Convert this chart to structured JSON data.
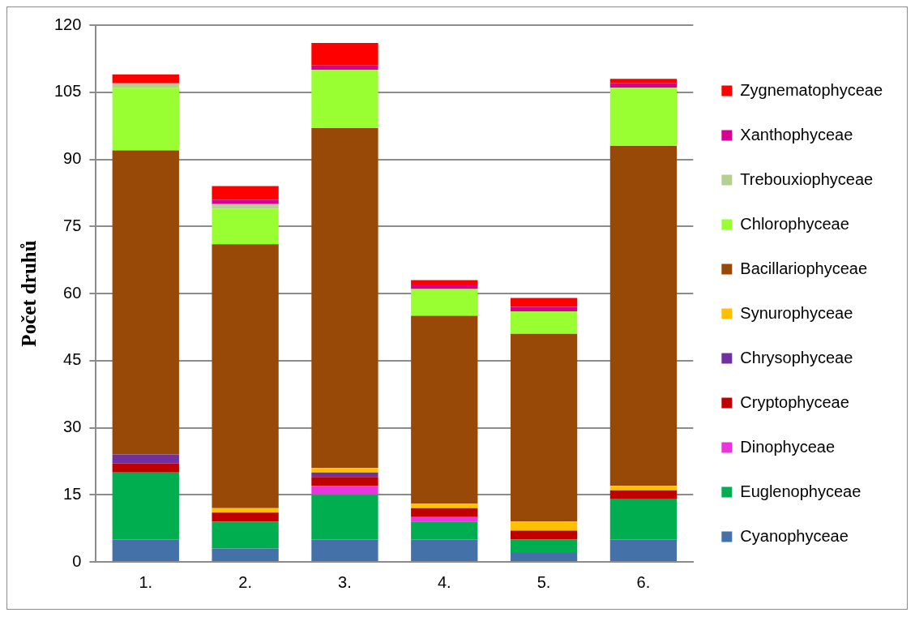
{
  "chart_data": {
    "type": "bar",
    "stacked": true,
    "ylabel": "Počet druhů",
    "categories": [
      "1.",
      "2.",
      "3.",
      "4.",
      "5.",
      "6."
    ],
    "ylim": [
      0,
      120
    ],
    "yticks": [
      0,
      15,
      30,
      45,
      60,
      75,
      90,
      105,
      120
    ],
    "grid": "y",
    "legend": "right",
    "series": [
      {
        "name": "Cyanophyceae",
        "color": "#4472a8",
        "values": [
          5,
          3,
          5,
          5,
          2,
          5
        ]
      },
      {
        "name": "Euglenophyceae",
        "color": "#00ae50",
        "values": [
          15,
          6,
          10,
          4,
          3,
          9
        ]
      },
      {
        "name": "Dinophyceae",
        "color": "#e935d9",
        "values": [
          0,
          0,
          2,
          1,
          0,
          0
        ]
      },
      {
        "name": "Cryptophyceae",
        "color": "#c00000",
        "values": [
          2,
          2,
          2,
          2,
          2,
          2
        ]
      },
      {
        "name": "Chrysophyceae",
        "color": "#7030a0",
        "values": [
          2,
          0,
          1,
          0,
          0,
          0
        ]
      },
      {
        "name": "Synurophyceae",
        "color": "#ffc000",
        "values": [
          0,
          1,
          1,
          1,
          2,
          1
        ]
      },
      {
        "name": "Bacillariophyceae",
        "color": "#984807",
        "values": [
          68,
          59,
          76,
          42,
          42,
          76
        ]
      },
      {
        "name": "Chlorophyceae",
        "color": "#99ff33",
        "values": [
          14,
          8,
          13,
          6,
          5,
          13
        ]
      },
      {
        "name": "Trebouxiophyceae",
        "color": "#b8cf94",
        "values": [
          1,
          1,
          0,
          0,
          0,
          0
        ]
      },
      {
        "name": "Xanthophyceae",
        "color": "#d60093",
        "values": [
          0,
          1,
          1,
          1,
          1,
          1
        ]
      },
      {
        "name": "Zygnematophyceae",
        "color": "#ff0000",
        "values": [
          2,
          3,
          5,
          1,
          2,
          1
        ]
      }
    ]
  }
}
